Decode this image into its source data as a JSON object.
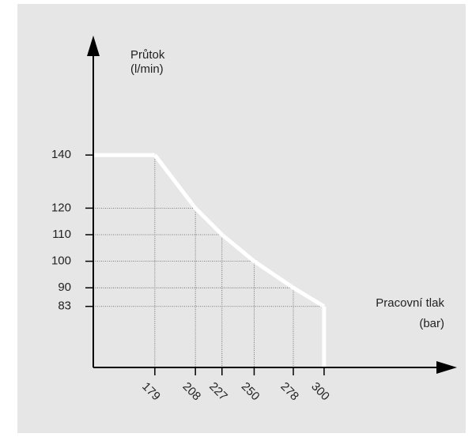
{
  "chart_data": {
    "type": "line",
    "ylabel": [
      "Průtok",
      "(l/min)"
    ],
    "xlabel": [
      "Pracovní tlak",
      "(bar)"
    ],
    "x": [
      179,
      208,
      227,
      250,
      278,
      300
    ],
    "series": [
      {
        "color": "#ffffff",
        "values": [
          140,
          120,
          110,
          100,
          90,
          83
        ]
      }
    ],
    "xlim": [
      135,
      395
    ],
    "ylim": [
      60,
      185
    ],
    "xticks": [
      179,
      208,
      227,
      250,
      278,
      300
    ],
    "yticks": [
      83,
      90,
      100,
      110,
      120,
      140
    ],
    "grid": true
  }
}
